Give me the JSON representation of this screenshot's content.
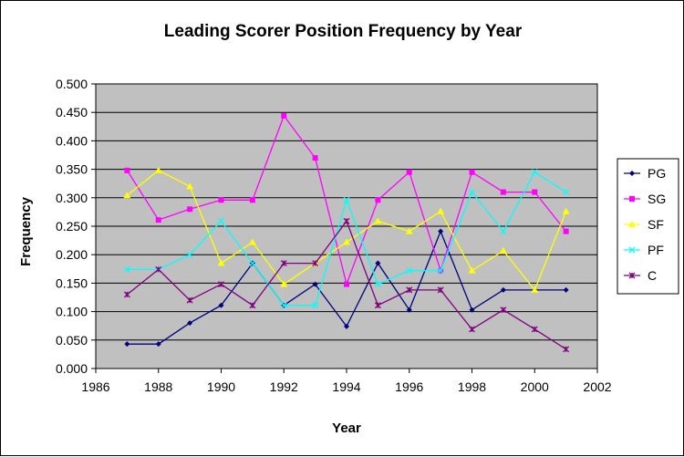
{
  "chart_data": {
    "type": "line",
    "title": "Leading Scorer Position Frequency by Year",
    "xlabel": "Year",
    "ylabel": "Frequency",
    "xlim": [
      1986,
      2002
    ],
    "ylim": [
      0,
      0.5
    ],
    "x_ticks": [
      "1986",
      "1988",
      "1990",
      "1992",
      "1994",
      "1996",
      "1998",
      "2000",
      "2002"
    ],
    "x_tick_values": [
      1986,
      1988,
      1990,
      1992,
      1994,
      1996,
      1998,
      2000,
      2002
    ],
    "y_ticks": [
      "0.000",
      "0.050",
      "0.100",
      "0.150",
      "0.200",
      "0.250",
      "0.300",
      "0.350",
      "0.400",
      "0.450",
      "0.500"
    ],
    "y_tick_values": [
      0,
      0.05,
      0.1,
      0.15,
      0.2,
      0.25,
      0.3,
      0.35,
      0.4,
      0.45,
      0.5
    ],
    "grid": "horizontal",
    "legend_position": "right",
    "x": [
      1987,
      1988,
      1989,
      1990,
      1991,
      1992,
      1993,
      1994,
      1995,
      1996,
      1997,
      1998,
      1999,
      2000,
      2001
    ],
    "series": [
      {
        "name": "PG",
        "color": "#000080",
        "marker": "diamond",
        "values": [
          0.043,
          0.043,
          0.08,
          0.111,
          0.185,
          0.111,
          0.148,
          0.074,
          0.185,
          0.103,
          0.241,
          0.103,
          0.138,
          0.138,
          0.138
        ]
      },
      {
        "name": "SG",
        "color": "#ff00ff",
        "marker": "square",
        "values": [
          0.348,
          0.261,
          0.28,
          0.296,
          0.296,
          0.444,
          0.37,
          0.148,
          0.296,
          0.345,
          0.172,
          0.345,
          0.31,
          0.31,
          0.241
        ]
      },
      {
        "name": "SF",
        "color": "#ffff00",
        "marker": "triangle",
        "values": [
          0.304,
          0.348,
          0.32,
          0.185,
          0.222,
          0.148,
          0.185,
          0.222,
          0.259,
          0.241,
          0.276,
          0.172,
          0.207,
          0.138,
          0.276
        ]
      },
      {
        "name": "PF",
        "color": "#00ffff",
        "marker": "x",
        "values": [
          0.174,
          0.174,
          0.2,
          0.259,
          0.185,
          0.111,
          0.111,
          0.296,
          0.148,
          0.172,
          0.172,
          0.31,
          0.241,
          0.345,
          0.31
        ]
      },
      {
        "name": "C",
        "color": "#800080",
        "marker": "star",
        "values": [
          0.13,
          0.174,
          0.12,
          0.148,
          0.111,
          0.185,
          0.185,
          0.259,
          0.111,
          0.138,
          0.138,
          0.069,
          0.103,
          0.069,
          0.034
        ]
      }
    ]
  },
  "colors": {
    "plot_background": "#c0c0c0",
    "gridline": "#000000",
    "frame": "#000000"
  }
}
